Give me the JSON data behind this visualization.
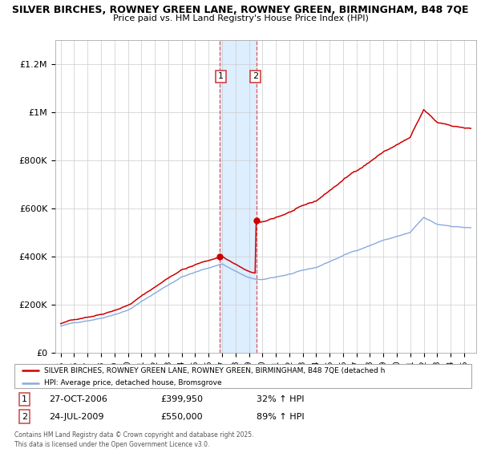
{
  "title_line1": "SILVER BIRCHES, ROWNEY GREEN LANE, ROWNEY GREEN, BIRMINGHAM, B48 7QE",
  "title_line2": "Price paid vs. HM Land Registry's House Price Index (HPI)",
  "ylabel_ticks": [
    "£0",
    "£200K",
    "£400K",
    "£600K",
    "£800K",
    "£1M",
    "£1.2M"
  ],
  "ytick_values": [
    0,
    200000,
    400000,
    600000,
    800000,
    1000000,
    1200000
  ],
  "ylim": [
    0,
    1300000
  ],
  "property_color": "#cc0000",
  "hpi_color": "#88aadd",
  "shade_color": "#ddeeff",
  "event1_x": 2006.82,
  "event2_x": 2009.56,
  "event1_price": 399950,
  "event2_price": 550000,
  "legend_line1": "SILVER BIRCHES, ROWNEY GREEN LANE, ROWNEY GREEN, BIRMINGHAM, B48 7QE (detached h",
  "legend_line2": "HPI: Average price, detached house, Bromsgrove",
  "annotation1_date": "27-OCT-2006",
  "annotation1_price": "£399,950",
  "annotation1_hpi": "32% ↑ HPI",
  "annotation2_date": "24-JUL-2009",
  "annotation2_price": "£550,000",
  "annotation2_hpi": "89% ↑ HPI",
  "copyright_text": "Contains HM Land Registry data © Crown copyright and database right 2025.\nThis data is licensed under the Open Government Licence v3.0.",
  "grid_color": "#cccccc",
  "xtick_years": [
    1995,
    1996,
    1997,
    1998,
    1999,
    2000,
    2001,
    2002,
    2003,
    2004,
    2005,
    2006,
    2007,
    2008,
    2009,
    2010,
    2011,
    2012,
    2013,
    2014,
    2015,
    2016,
    2017,
    2018,
    2019,
    2020,
    2021,
    2022,
    2023,
    2024,
    2025
  ]
}
